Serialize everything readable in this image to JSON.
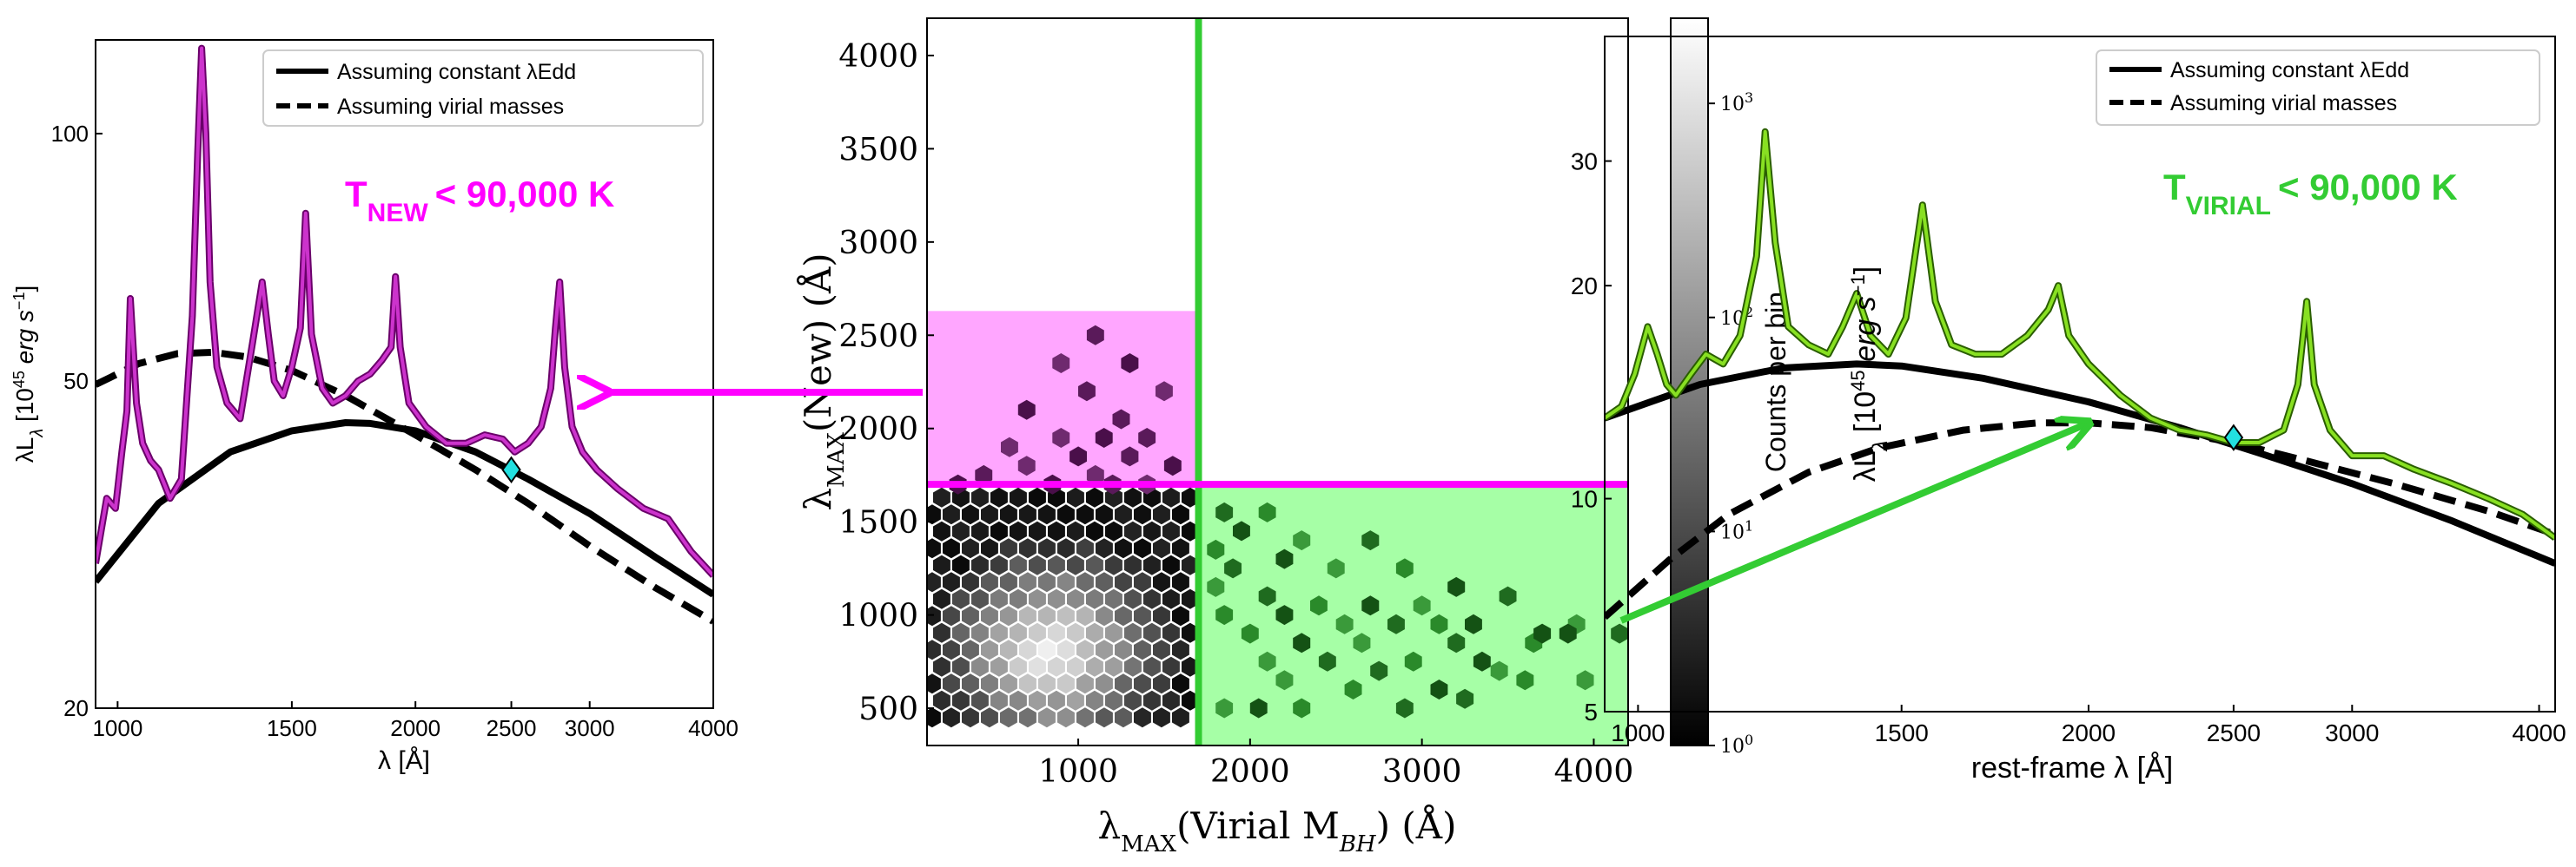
{
  "colors": {
    "magenta": "#ff00ff",
    "magenta_fill": "#ffa6ff",
    "green": "#33cc33",
    "green_fill": "#a6ffa6",
    "spectrum_magenta_edge": "#6a006a",
    "spectrum_magenta": "#cc33cc",
    "spectrum_green_edge": "#2a5e00",
    "spectrum_green": "#88e022",
    "marker": "#22e0e0"
  },
  "left_panel": {
    "xlabel": "λ [Å]",
    "ylabel": "λL_λ [10^45 erg s^-1]",
    "legend": [
      "Assuming constant λEdd",
      "Assuming virial masses"
    ],
    "annotation": {
      "main": "T",
      "sub": "NEW",
      "rest": "< 90,000 K"
    }
  },
  "middle_panel": {
    "xlabel": "λMAX(Virial M_BH) (Å)",
    "ylabel": "λMAX(New) (Å)",
    "colorbar_label": "Counts per bin",
    "colorbar_ticks": [
      "10^0",
      "10^1",
      "10^2",
      "10^3"
    ]
  },
  "right_panel": {
    "xlabel": "rest-frame λ [Å]",
    "ylabel": "λL_λ [10^45 erg s^-1]",
    "legend": [
      "Assuming constant λEdd",
      "Assuming virial masses"
    ],
    "annotation": {
      "main": "T",
      "sub": "VIRIAL",
      "rest": "< 90,000 K"
    }
  },
  "chart_data": [
    {
      "type": "line",
      "panel": "left",
      "xscale": "log",
      "yscale": "log",
      "xlim": [
        950,
        4000
      ],
      "ylim": [
        20,
        130
      ],
      "xticks": [
        1000,
        1500,
        2000,
        2500,
        3000,
        4000
      ],
      "yticks": [
        20,
        50,
        100
      ],
      "xlabel": "λ [Å]",
      "ylabel": "λL_λ [10^45 erg s^-1]",
      "legend_position": "top-right",
      "series": [
        {
          "name": "Assuming constant λEdd",
          "style": "solid",
          "x": [
            950,
            1100,
            1300,
            1500,
            1700,
            1800,
            2000,
            2300,
            2600,
            3000,
            3500,
            4000
          ],
          "y": [
            28.5,
            35.5,
            41.0,
            43.5,
            44.5,
            44.4,
            43.5,
            41.0,
            38.0,
            34.5,
            30.5,
            27.5
          ]
        },
        {
          "name": "Assuming virial masses",
          "style": "dashed",
          "x": [
            950,
            1050,
            1150,
            1250,
            1350,
            1500,
            1700,
            2000,
            2300,
            2600,
            3000,
            3500,
            4000
          ],
          "y": [
            49.5,
            52.5,
            54.0,
            54.2,
            53.5,
            51.5,
            48.0,
            43.0,
            39.0,
            35.5,
            31.5,
            28.0,
            25.5
          ]
        },
        {
          "name": "spectrum",
          "style": "spectrum",
          "x": [
            950,
            975,
            995,
            1010,
            1022,
            1030,
            1045,
            1060,
            1080,
            1100,
            1130,
            1160,
            1190,
            1205,
            1216,
            1228,
            1240,
            1260,
            1290,
            1330,
            1370,
            1400,
            1420,
            1440,
            1470,
            1500,
            1530,
            1549,
            1570,
            1610,
            1650,
            1700,
            1750,
            1800,
            1850,
            1890,
            1909,
            1930,
            1970,
            2050,
            2150,
            2250,
            2350,
            2450,
            2520,
            2600,
            2680,
            2740,
            2770,
            2798,
            2830,
            2880,
            2950,
            3050,
            3200,
            3400,
            3600,
            3800,
            4000
          ],
          "y": [
            30.0,
            36.0,
            35.0,
            41.0,
            46.0,
            63.0,
            47.0,
            42.0,
            40.0,
            39.0,
            36.0,
            38.0,
            60.0,
            95.0,
            127.0,
            100.0,
            66.0,
            52.0,
            47.0,
            45.0,
            56.0,
            66.0,
            57.0,
            50.0,
            48.0,
            52.0,
            58.0,
            80.0,
            57.0,
            49.0,
            47.0,
            48.0,
            50.0,
            51.0,
            53.0,
            55.0,
            67.0,
            55.0,
            47.0,
            44.0,
            42.0,
            42.0,
            43.0,
            42.5,
            41.0,
            42.0,
            44.0,
            49.0,
            58.0,
            66.0,
            52.0,
            44.0,
            41.0,
            39.0,
            37.0,
            35.0,
            34.0,
            31.0,
            29.0
          ]
        }
      ],
      "marker": {
        "x": 2500,
        "y": 39
      }
    },
    {
      "type": "heatmap",
      "panel": "middle",
      "xlim": [
        120,
        4200
      ],
      "ylim": [
        300,
        4200
      ],
      "xticks": [
        1000,
        2000,
        3000,
        4000
      ],
      "yticks": [
        500,
        1000,
        1500,
        2000,
        2500,
        3000,
        3500,
        4000
      ],
      "xlabel": "λMAX(Virial M_BH) (Å)",
      "ylabel": "λMAX(New) (Å)",
      "color_scale": "log",
      "colorbar_label": "Counts per bin",
      "colorbar_range": [
        1,
        2500
      ],
      "regions": [
        {
          "name": "magenta region",
          "x": [
            120,
            1700
          ],
          "y": [
            1700,
            2630
          ],
          "color": "magenta"
        },
        {
          "name": "green region",
          "x": [
            1700,
            4200
          ],
          "y": [
            300,
            1700
          ],
          "color": "green"
        }
      ],
      "lines": [
        {
          "orientation": "vertical",
          "x": 1700,
          "color": "green"
        },
        {
          "orientation": "horizontal",
          "y": 1700,
          "x_range": [
            120,
            1700
          ],
          "color": "magenta"
        },
        {
          "orientation": "horizontal",
          "y": 1700,
          "x_range": [
            1700,
            4200
          ],
          "color": "magenta"
        }
      ],
      "main_cloud": {
        "center": [
          850,
          800
        ],
        "peak_count": 2500
      },
      "magenta_points": [
        [
          1100,
          2500
        ],
        [
          900,
          2350
        ],
        [
          1300,
          2350
        ],
        [
          1050,
          2200
        ],
        [
          1500,
          2200
        ],
        [
          700,
          2100
        ],
        [
          1250,
          2050
        ],
        [
          900,
          1950
        ],
        [
          1150,
          1950
        ],
        [
          1400,
          1950
        ],
        [
          600,
          1900
        ],
        [
          1000,
          1850
        ],
        [
          1300,
          1850
        ],
        [
          700,
          1800
        ],
        [
          1550,
          1800
        ],
        [
          450,
          1750
        ],
        [
          1100,
          1750
        ],
        [
          850,
          1700
        ],
        [
          1200,
          1700
        ],
        [
          1400,
          1700
        ],
        [
          300,
          1700
        ]
      ],
      "green_points": [
        [
          1850,
          1550
        ],
        [
          2100,
          1550
        ],
        [
          1950,
          1450
        ],
        [
          2300,
          1400
        ],
        [
          2700,
          1400
        ],
        [
          1800,
          1350
        ],
        [
          2200,
          1300
        ],
        [
          2500,
          1250
        ],
        [
          1900,
          1250
        ],
        [
          2900,
          1250
        ],
        [
          3200,
          1150
        ],
        [
          1800,
          1150
        ],
        [
          2100,
          1100
        ],
        [
          2400,
          1050
        ],
        [
          2700,
          1050
        ],
        [
          3000,
          1050
        ],
        [
          3500,
          1100
        ],
        [
          1850,
          1000
        ],
        [
          2200,
          1000
        ],
        [
          2550,
          950
        ],
        [
          2850,
          950
        ],
        [
          3100,
          950
        ],
        [
          3300,
          950
        ],
        [
          3900,
          950
        ],
        [
          4150,
          900
        ],
        [
          2000,
          900
        ],
        [
          2300,
          850
        ],
        [
          2650,
          850
        ],
        [
          3200,
          850
        ],
        [
          3650,
          850
        ],
        [
          3850,
          900
        ],
        [
          2100,
          750
        ],
        [
          2450,
          750
        ],
        [
          2950,
          750
        ],
        [
          3350,
          750
        ],
        [
          3450,
          700
        ],
        [
          2750,
          700
        ],
        [
          3600,
          650
        ],
        [
          3100,
          600
        ],
        [
          3950,
          650
        ],
        [
          2900,
          500
        ],
        [
          2300,
          500
        ],
        [
          2050,
          500
        ],
        [
          1850,
          500
        ],
        [
          3250,
          550
        ],
        [
          2600,
          600
        ],
        [
          3700,
          900
        ],
        [
          2200,
          650
        ]
      ]
    },
    {
      "type": "line",
      "panel": "right",
      "xscale": "log",
      "yscale": "log",
      "xlim": [
        950,
        4100
      ],
      "ylim": [
        5,
        45
      ],
      "xticks": [
        1000,
        1500,
        2000,
        2500,
        3000,
        4000
      ],
      "yticks": [
        5,
        10,
        20,
        30
      ],
      "xlabel": "rest-frame λ [Å]",
      "ylabel": "λL_λ [10^45 erg s^-1]",
      "legend_position": "top-right",
      "series": [
        {
          "name": "Assuming constant λEdd",
          "style": "solid",
          "x": [
            950,
            1100,
            1250,
            1400,
            1500,
            1700,
            2000,
            2300,
            2600,
            3000,
            3500,
            4100
          ],
          "y": [
            13.0,
            14.5,
            15.3,
            15.5,
            15.4,
            14.8,
            13.7,
            12.6,
            11.6,
            10.5,
            9.3,
            8.1
          ]
        },
        {
          "name": "Assuming virial masses",
          "style": "dashed",
          "x": [
            950,
            1050,
            1150,
            1300,
            1450,
            1650,
            1850,
            2000,
            2200,
            2500,
            2800,
            3200,
            3700,
            4100
          ],
          "y": [
            6.8,
            8.2,
            9.5,
            10.9,
            11.8,
            12.5,
            12.8,
            12.8,
            12.6,
            12.0,
            11.3,
            10.5,
            9.6,
            8.9
          ]
        },
        {
          "name": "spectrum",
          "style": "spectrum",
          "x": [
            950,
            975,
            995,
            1015,
            1030,
            1045,
            1060,
            1085,
            1110,
            1140,
            1170,
            1200,
            1216,
            1235,
            1260,
            1300,
            1340,
            1370,
            1400,
            1430,
            1470,
            1510,
            1549,
            1580,
            1620,
            1680,
            1750,
            1820,
            1880,
            1909,
            1940,
            2000,
            2100,
            2200,
            2300,
            2400,
            2500,
            2600,
            2700,
            2760,
            2798,
            2830,
            2900,
            3000,
            3150,
            3300,
            3500,
            3700,
            3900,
            4100
          ],
          "y": [
            13.0,
            13.5,
            15.0,
            17.5,
            16.0,
            14.5,
            14.0,
            15.0,
            16.0,
            15.5,
            17.0,
            22.0,
            33.0,
            23.0,
            17.5,
            16.5,
            16.0,
            17.5,
            19.5,
            17.0,
            16.0,
            18.0,
            26.0,
            19.0,
            16.5,
            16.0,
            16.0,
            17.0,
            18.5,
            20.0,
            17.0,
            15.5,
            14.0,
            13.0,
            12.5,
            12.3,
            12.0,
            12.0,
            12.5,
            14.5,
            19.0,
            14.5,
            12.5,
            11.5,
            11.5,
            11.0,
            10.5,
            10.0,
            9.5,
            8.8
          ]
        }
      ],
      "marker": {
        "x": 2500,
        "y": 12.2
      }
    }
  ]
}
